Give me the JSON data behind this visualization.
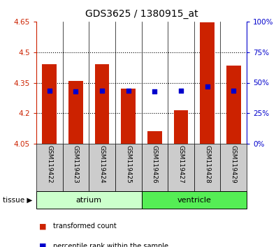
{
  "title": "GDS3625 / 1380915_at",
  "samples": [
    "GSM119422",
    "GSM119423",
    "GSM119424",
    "GSM119425",
    "GSM119426",
    "GSM119427",
    "GSM119428",
    "GSM119429"
  ],
  "red_values": [
    4.44,
    4.36,
    4.44,
    4.32,
    4.11,
    4.215,
    4.648,
    4.435
  ],
  "blue_values": [
    43.5,
    43.0,
    43.5,
    43.2,
    43.1,
    43.3,
    47.0,
    43.5
  ],
  "bar_bottom": 4.05,
  "ylim_left": [
    4.05,
    4.65
  ],
  "ylim_right": [
    0,
    100
  ],
  "yticks_left": [
    4.05,
    4.2,
    4.35,
    4.5,
    4.65
  ],
  "yticks_right": [
    0,
    25,
    50,
    75,
    100
  ],
  "ytick_labels_left": [
    "4.05",
    "4.2",
    "4.35",
    "4.5",
    "4.65"
  ],
  "ytick_labels_right": [
    "0%",
    "25%",
    "50%",
    "75%",
    "100%"
  ],
  "bar_color": "#cc2200",
  "dot_color": "#0000cc",
  "tissue_groups": [
    {
      "label": "atrium",
      "start": 0,
      "end": 4
    },
    {
      "label": "ventricle",
      "start": 4,
      "end": 8
    }
  ],
  "legend_red": "transformed count",
  "legend_blue": "percentile rank within the sample",
  "bar_width": 0.55,
  "grid_lines": [
    4.2,
    4.35,
    4.5
  ],
  "background_color": "#ffffff",
  "tick_label_box_color": "#cccccc",
  "atrium_color": "#ccffcc",
  "ventricle_color": "#55ee55"
}
